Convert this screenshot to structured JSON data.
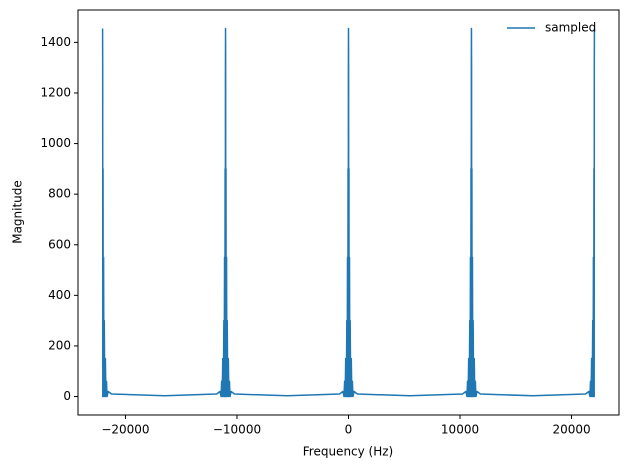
{
  "chart_data": {
    "type": "line",
    "xlabel": "Frequency (Hz)",
    "ylabel": "Magnitude",
    "x": [
      -22050,
      -22040,
      -22030,
      -22010,
      -21990,
      -21960,
      -21930,
      -21900,
      -21850,
      -21800,
      -21750,
      -21700,
      -21650,
      -21550,
      -21250,
      -16500,
      -11825,
      -11525,
      -11425,
      -11375,
      -11325,
      -11275,
      -11225,
      -11175,
      -11145,
      -11115,
      -11085,
      -11065,
      -11045,
      -11035,
      -11025,
      -11015,
      -11005,
      -10985,
      -10965,
      -10935,
      -10905,
      -10875,
      -10825,
      -10775,
      -10725,
      -10675,
      -10625,
      -10525,
      -10225,
      -5500,
      -800,
      -500,
      -400,
      -350,
      -300,
      -250,
      -200,
      -150,
      -120,
      -90,
      -60,
      -40,
      -20,
      -10,
      0,
      10,
      20,
      40,
      60,
      90,
      120,
      150,
      200,
      250,
      300,
      350,
      400,
      500,
      800,
      5500,
      10225,
      10525,
      10625,
      10675,
      10725,
      10775,
      10825,
      10875,
      10905,
      10935,
      10965,
      10985,
      11005,
      11015,
      11025,
      11035,
      11045,
      11065,
      11085,
      11115,
      11145,
      11175,
      11225,
      11275,
      11325,
      11375,
      11425,
      11525,
      11825,
      16500,
      21250,
      21550,
      21650,
      21700,
      21750,
      21800,
      21850,
      21900,
      21930,
      21960,
      21990,
      22010,
      22030,
      22040,
      22050
    ],
    "series": [
      {
        "name": "sampled",
        "color": "#1f77b4",
        "values": [
          1455,
          1300,
          0,
          900,
          0,
          550,
          0,
          300,
          0,
          150,
          0,
          60,
          0,
          20,
          10,
          3,
          10,
          20,
          0,
          60,
          0,
          150,
          0,
          300,
          0,
          550,
          0,
          900,
          0,
          1300,
          1455,
          1300,
          0,
          900,
          0,
          550,
          0,
          300,
          0,
          150,
          0,
          60,
          0,
          20,
          10,
          3,
          10,
          20,
          0,
          60,
          0,
          150,
          0,
          300,
          0,
          550,
          0,
          900,
          0,
          1300,
          1455,
          1300,
          0,
          900,
          0,
          550,
          0,
          300,
          0,
          150,
          0,
          60,
          0,
          20,
          10,
          3,
          10,
          20,
          0,
          60,
          0,
          150,
          0,
          300,
          0,
          550,
          0,
          900,
          0,
          1300,
          1455,
          1300,
          0,
          900,
          0,
          550,
          0,
          300,
          0,
          150,
          0,
          60,
          0,
          20,
          10,
          3,
          10,
          20,
          0,
          60,
          0,
          150,
          0,
          300,
          0,
          550,
          0,
          900,
          0,
          1300,
          1455
        ]
      }
    ],
    "xlim": [
      -24255,
      24255
    ],
    "ylim": [
      -73,
      1528
    ],
    "xticks": [
      {
        "value": -20000,
        "label": "−20000"
      },
      {
        "value": -10000,
        "label": "−10000"
      },
      0,
      10000,
      20000
    ],
    "yticks": [
      0,
      200,
      400,
      600,
      800,
      1000,
      1200,
      1400
    ],
    "legend": "upper right"
  }
}
